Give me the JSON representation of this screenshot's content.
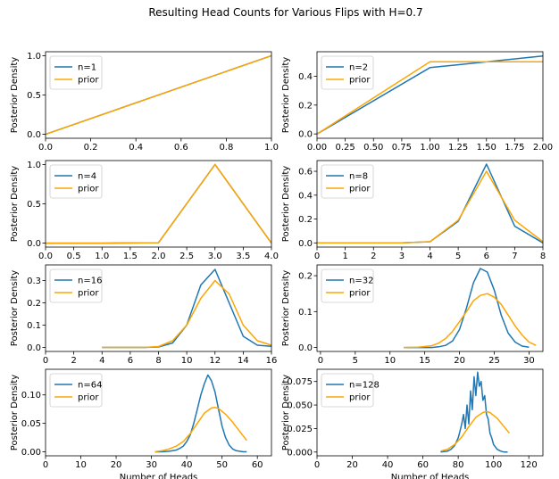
{
  "suptitle": "Resulting Head Counts for Various Flips with H=0.7",
  "colors": {
    "posterior": "#1f77b4",
    "prior": "#ffa500"
  },
  "chart_data": [
    {
      "type": "line",
      "legend": "top-left",
      "ylabel": "Posterior Density",
      "xlabel": "",
      "xlim": [
        0,
        1
      ],
      "ylim": [
        -0.05,
        1.05
      ],
      "xticks": [
        0,
        0.2,
        0.4,
        0.6,
        0.8,
        1.0
      ],
      "xtick_labels": [
        "0.0",
        "0.2",
        "0.4",
        "0.6",
        "0.8",
        "1.0"
      ],
      "yticks": [
        0,
        0.5,
        1.0
      ],
      "ytick_labels": [
        "0.0",
        "0.5",
        "1.0"
      ],
      "series": [
        {
          "name": "n=1",
          "x": [
            0,
            1
          ],
          "y": [
            0,
            1
          ]
        },
        {
          "name": "prior",
          "x": [
            0,
            1
          ],
          "y": [
            0,
            1
          ]
        }
      ]
    },
    {
      "type": "line",
      "legend": "top-left",
      "ylabel": "Posterior Density",
      "xlabel": "",
      "xlim": [
        0,
        2
      ],
      "ylim": [
        -0.03,
        0.57
      ],
      "xticks": [
        0,
        0.25,
        0.5,
        0.75,
        1.0,
        1.25,
        1.5,
        1.75,
        2.0
      ],
      "xtick_labels": [
        "0.00",
        "0.25",
        "0.50",
        "0.75",
        "1.00",
        "1.25",
        "1.50",
        "1.75",
        "2.00"
      ],
      "yticks": [
        0,
        0.2,
        0.4
      ],
      "ytick_labels": [
        "0.0",
        "0.2",
        "0.4"
      ],
      "series": [
        {
          "name": "n=2",
          "x": [
            0,
            1,
            2
          ],
          "y": [
            0,
            0.46,
            0.54
          ]
        },
        {
          "name": "prior",
          "x": [
            0,
            1,
            2
          ],
          "y": [
            0,
            0.5,
            0.5
          ]
        }
      ]
    },
    {
      "type": "line",
      "legend": "top-left",
      "ylabel": "Posterior Density",
      "xlabel": "",
      "xlim": [
        0,
        4
      ],
      "ylim": [
        -0.05,
        1.05
      ],
      "xticks": [
        0,
        0.5,
        1.0,
        1.5,
        2.0,
        2.5,
        3.0,
        3.5,
        4.0
      ],
      "xtick_labels": [
        "0.0",
        "0.5",
        "1.0",
        "1.5",
        "2.0",
        "2.5",
        "3.0",
        "3.5",
        "4.0"
      ],
      "yticks": [
        0,
        0.5,
        1.0
      ],
      "ytick_labels": [
        "0.0",
        "0.5",
        "1.0"
      ],
      "series": [
        {
          "name": "n=4",
          "x": [
            0,
            1,
            2,
            3,
            4
          ],
          "y": [
            0,
            0,
            0.005,
            1.0,
            0
          ]
        },
        {
          "name": "prior",
          "x": [
            0,
            1,
            2,
            3,
            4
          ],
          "y": [
            0,
            0,
            0.005,
            1.0,
            0
          ]
        }
      ]
    },
    {
      "type": "line",
      "legend": "top-left",
      "ylabel": "Posterior Density",
      "xlabel": "",
      "xlim": [
        0,
        8
      ],
      "ylim": [
        -0.035,
        0.69
      ],
      "xticks": [
        0,
        1,
        2,
        3,
        4,
        5,
        6,
        7,
        8
      ],
      "xtick_labels": [
        "0",
        "1",
        "2",
        "3",
        "4",
        "5",
        "6",
        "7",
        "8"
      ],
      "yticks": [
        0,
        0.2,
        0.4,
        0.6
      ],
      "ytick_labels": [
        "0.0",
        "0.2",
        "0.4",
        "0.6"
      ],
      "series": [
        {
          "name": "n=8",
          "x": [
            0,
            1,
            2,
            3,
            4,
            5,
            6,
            7,
            8
          ],
          "y": [
            0,
            0,
            0,
            0,
            0.01,
            0.18,
            0.66,
            0.14,
            0
          ]
        },
        {
          "name": "prior",
          "x": [
            0,
            1,
            2,
            3,
            4,
            5,
            6,
            7,
            8
          ],
          "y": [
            0,
            0,
            0,
            0,
            0.01,
            0.19,
            0.6,
            0.19,
            0.01
          ]
        }
      ]
    },
    {
      "type": "line",
      "legend": "top-left",
      "ylabel": "Posterior Density",
      "xlabel": "",
      "xlim": [
        0,
        16
      ],
      "ylim": [
        -0.018,
        0.37
      ],
      "xticks": [
        0,
        2,
        4,
        6,
        8,
        10,
        12,
        14,
        16
      ],
      "xtick_labels": [
        "0",
        "2",
        "4",
        "6",
        "8",
        "10",
        "12",
        "14",
        "16"
      ],
      "yticks": [
        0,
        0.1,
        0.2,
        0.3
      ],
      "ytick_labels": [
        "0.0",
        "0.1",
        "0.2",
        "0.3"
      ],
      "series": [
        {
          "name": "n=16",
          "x": [
            4,
            5,
            6,
            7,
            8,
            9,
            10,
            11,
            12,
            13,
            14,
            15,
            16
          ],
          "y": [
            0,
            0,
            0,
            0,
            0.002,
            0.02,
            0.1,
            0.28,
            0.35,
            0.2,
            0.05,
            0.01,
            0.005
          ]
        },
        {
          "name": "prior",
          "x": [
            4,
            5,
            6,
            7,
            8,
            9,
            10,
            11,
            12,
            13,
            14,
            15,
            16
          ],
          "y": [
            0,
            0,
            0,
            0,
            0.004,
            0.03,
            0.1,
            0.22,
            0.3,
            0.24,
            0.1,
            0.03,
            0.01
          ]
        }
      ]
    },
    {
      "type": "line",
      "legend": "top-left",
      "ylabel": "Posterior Density",
      "xlabel": "",
      "xlim": [
        -0.5,
        32
      ],
      "ylim": [
        -0.011,
        0.23
      ],
      "xticks": [
        0,
        5,
        10,
        15,
        20,
        25,
        30
      ],
      "xtick_labels": [
        "0",
        "5",
        "10",
        "15",
        "20",
        "25",
        "30"
      ],
      "yticks": [
        0,
        0.1,
        0.2
      ],
      "ytick_labels": [
        "0.0",
        "0.1",
        "0.2"
      ],
      "series": [
        {
          "name": "n=32",
          "x": [
            12,
            14,
            16,
            17,
            18,
            19,
            20,
            21,
            22,
            23,
            24,
            25,
            26,
            27,
            28,
            29,
            30
          ],
          "y": [
            0,
            0,
            0,
            0.002,
            0.006,
            0.018,
            0.05,
            0.11,
            0.18,
            0.22,
            0.21,
            0.16,
            0.09,
            0.04,
            0.015,
            0.004,
            0.001
          ]
        },
        {
          "name": "prior",
          "x": [
            12,
            14,
            16,
            17,
            18,
            19,
            20,
            21,
            22,
            23,
            24,
            25,
            26,
            27,
            28,
            29,
            30,
            31
          ],
          "y": [
            0,
            0.001,
            0.005,
            0.012,
            0.025,
            0.045,
            0.072,
            0.1,
            0.13,
            0.145,
            0.15,
            0.14,
            0.12,
            0.09,
            0.06,
            0.035,
            0.015,
            0.006
          ]
        }
      ]
    },
    {
      "type": "line",
      "legend": "top-left",
      "ylabel": "Posterior Density",
      "xlabel": "Number of Heads",
      "xlim": [
        0,
        64
      ],
      "ylim": [
        -0.007,
        0.145
      ],
      "xticks": [
        0,
        10,
        20,
        30,
        40,
        50,
        60
      ],
      "xtick_labels": [
        "0",
        "10",
        "20",
        "30",
        "40",
        "50",
        "60"
      ],
      "yticks": [
        0,
        0.05,
        0.1
      ],
      "ytick_labels": [
        "0.00",
        "0.05",
        "0.10"
      ],
      "series": [
        {
          "name": "n=64",
          "x": [
            31,
            33,
            35,
            37,
            38,
            39,
            40,
            41,
            42,
            43,
            44,
            45,
            46,
            47,
            48,
            49,
            50,
            51,
            52,
            53,
            54,
            55,
            56,
            57
          ],
          "y": [
            0,
            0,
            0.001,
            0.003,
            0.006,
            0.01,
            0.018,
            0.03,
            0.05,
            0.075,
            0.1,
            0.12,
            0.135,
            0.125,
            0.105,
            0.075,
            0.045,
            0.025,
            0.012,
            0.005,
            0.002,
            0.001,
            0,
            0
          ]
        },
        {
          "name": "prior",
          "x": [
            31,
            33,
            35,
            37,
            39,
            41,
            43,
            45,
            47,
            48,
            49,
            51,
            53,
            55,
            57
          ],
          "y": [
            0,
            0.002,
            0.005,
            0.01,
            0.018,
            0.032,
            0.05,
            0.068,
            0.077,
            0.078,
            0.076,
            0.066,
            0.052,
            0.036,
            0.02
          ]
        }
      ]
    },
    {
      "type": "line",
      "legend": "top-left",
      "ylabel": "Posterior Density",
      "xlabel": "Number of Heads",
      "xlim": [
        0,
        128
      ],
      "ylim": [
        -0.004,
        0.088
      ],
      "xticks": [
        0,
        20,
        40,
        60,
        80,
        100,
        120
      ],
      "xtick_labels": [
        "0",
        "20",
        "40",
        "60",
        "80",
        "100",
        "120"
      ],
      "yticks": [
        0,
        0.025,
        0.05,
        0.075
      ],
      "ytick_labels": [
        "0.000",
        "0.025",
        "0.050",
        "0.075"
      ],
      "series": [
        {
          "name": "n=128",
          "x": [
            70,
            74,
            76,
            78,
            80,
            81,
            82,
            83,
            84,
            85,
            86,
            87,
            88,
            89,
            90,
            91,
            92,
            93,
            94,
            95,
            96,
            97,
            98,
            99,
            100,
            102,
            104,
            106,
            108
          ],
          "y": [
            0,
            0.001,
            0.003,
            0.007,
            0.015,
            0.022,
            0.03,
            0.04,
            0.025,
            0.05,
            0.03,
            0.065,
            0.045,
            0.08,
            0.06,
            0.085,
            0.07,
            0.075,
            0.055,
            0.06,
            0.04,
            0.035,
            0.02,
            0.015,
            0.008,
            0.003,
            0.001,
            0,
            0
          ]
        },
        {
          "name": "prior",
          "x": [
            70,
            74,
            78,
            82,
            86,
            90,
            94,
            96,
            98,
            102,
            106,
            109
          ],
          "y": [
            0.001,
            0.003,
            0.008,
            0.016,
            0.027,
            0.037,
            0.042,
            0.043,
            0.042,
            0.036,
            0.027,
            0.02
          ]
        }
      ]
    }
  ]
}
